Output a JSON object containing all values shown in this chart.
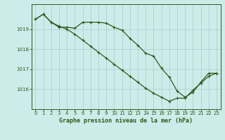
{
  "series1_x": [
    0,
    1,
    2,
    3,
    4,
    5,
    6,
    7,
    8,
    9,
    10,
    11,
    12,
    13,
    14,
    15,
    16,
    17,
    18,
    19,
    20,
    21,
    22,
    23
  ],
  "series1_y": [
    1019.5,
    1019.75,
    1019.35,
    1019.1,
    1019.1,
    1019.05,
    1019.35,
    1019.35,
    1019.35,
    1019.3,
    1019.1,
    1018.95,
    1018.55,
    1018.2,
    1017.8,
    1017.65,
    1017.05,
    1016.6,
    1015.9,
    1015.6,
    1015.85,
    1016.35,
    1016.8,
    1016.8
  ],
  "series2_x": [
    0,
    1,
    2,
    3,
    4,
    5,
    6,
    7,
    8,
    9,
    10,
    11,
    12,
    13,
    14,
    15,
    16,
    17,
    18,
    19,
    20,
    21,
    22,
    23
  ],
  "series2_y": [
    1019.5,
    1019.75,
    1019.35,
    1019.15,
    1019.0,
    1018.75,
    1018.45,
    1018.15,
    1017.85,
    1017.55,
    1017.25,
    1016.95,
    1016.65,
    1016.35,
    1016.05,
    1015.8,
    1015.6,
    1015.4,
    1015.55,
    1015.55,
    1015.95,
    1016.3,
    1016.65,
    1016.8
  ],
  "line_color": "#2d5a1b",
  "bg_color": "#ccecea",
  "grid_color": "#aad4d0",
  "axis_color": "#2d5a1b",
  "xlabel": "Graphe pression niveau de la mer (hPa)",
  "ylim": [
    1015.0,
    1020.25
  ],
  "yticks": [
    1016,
    1017,
    1018,
    1019
  ],
  "xticks": [
    0,
    1,
    2,
    3,
    4,
    5,
    6,
    7,
    8,
    9,
    10,
    11,
    12,
    13,
    14,
    15,
    16,
    17,
    18,
    19,
    20,
    21,
    22,
    23
  ]
}
